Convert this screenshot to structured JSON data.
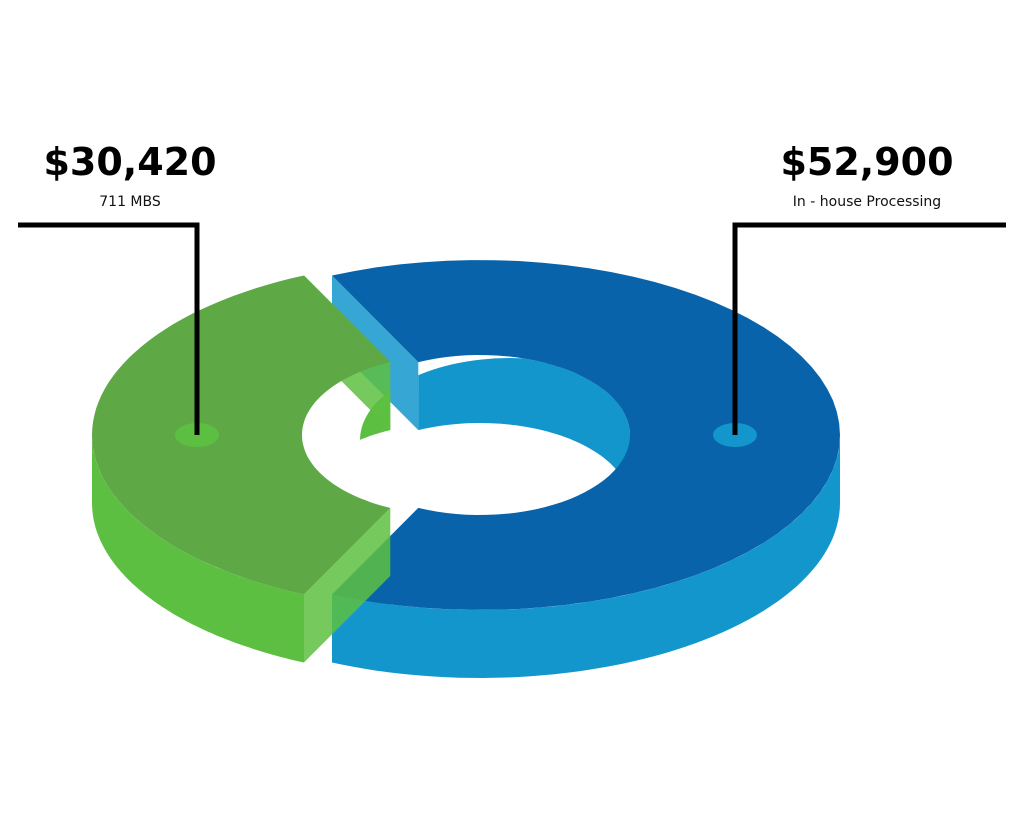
{
  "chart_data": {
    "type": "donut3d",
    "labels": [
      "711 MBS",
      "In - house Processing"
    ],
    "values": [
      30420,
      52900
    ],
    "value_labels": [
      "$30,420",
      "$52,900"
    ],
    "colors": [
      "#5ea946",
      "#0863ab"
    ],
    "side_colors": [
      "#5dbf41",
      "#1396cc"
    ]
  }
}
